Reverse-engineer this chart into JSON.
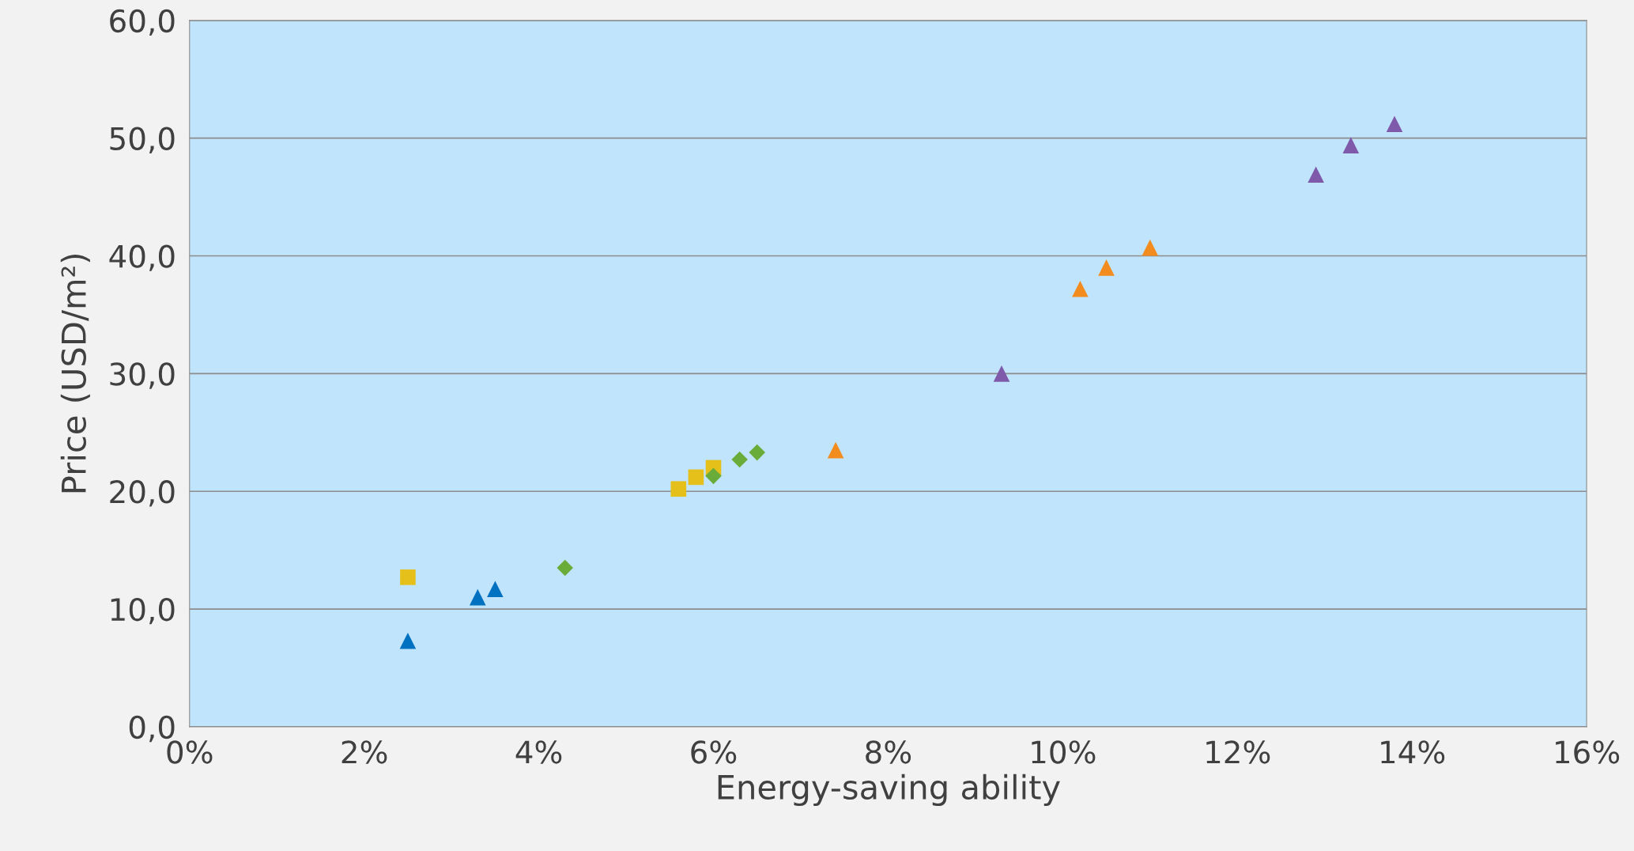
{
  "chart_data": {
    "type": "scatter",
    "xlabel": "Energy-saving ability",
    "ylabel": "Price (USD/m²)",
    "xlim": [
      0,
      16
    ],
    "ylim": [
      0,
      60
    ],
    "xticks": [
      {
        "value": 0,
        "label": "0%"
      },
      {
        "value": 2,
        "label": "2%"
      },
      {
        "value": 4,
        "label": "4%"
      },
      {
        "value": 6,
        "label": "6%"
      },
      {
        "value": 8,
        "label": "8%"
      },
      {
        "value": 10,
        "label": "10%"
      },
      {
        "value": 12,
        "label": "12%"
      },
      {
        "value": 14,
        "label": "14%"
      },
      {
        "value": 16,
        "label": "16%"
      }
    ],
    "yticks": [
      {
        "value": 0,
        "label": "0,0"
      },
      {
        "value": 10,
        "label": "10,0"
      },
      {
        "value": 20,
        "label": "20,0"
      },
      {
        "value": 30,
        "label": "30,0"
      },
      {
        "value": 40,
        "label": "40,0"
      },
      {
        "value": 50,
        "label": "50,0"
      },
      {
        "value": 60,
        "label": "60,0"
      }
    ],
    "grid": "y",
    "series": [
      {
        "color": "#0070c0",
        "marker": "triangle",
        "x": [
          2.5,
          3.3,
          3.5
        ],
        "values": [
          7.3,
          11.0,
          11.7
        ]
      },
      {
        "color": "#e6c01a",
        "marker": "square",
        "x": [
          2.5,
          5.6,
          5.8,
          6.0
        ],
        "values": [
          12.7,
          20.2,
          21.2,
          22.0
        ]
      },
      {
        "color": "#6aac3a",
        "marker": "diamond",
        "x": [
          4.3,
          6.0,
          6.3,
          6.5
        ],
        "values": [
          13.5,
          21.3,
          22.7,
          23.3
        ]
      },
      {
        "color": "#f28c1e",
        "marker": "triangle",
        "x": [
          7.4,
          10.2,
          10.5,
          11.0
        ],
        "values": [
          23.5,
          37.2,
          39.0,
          40.7
        ]
      },
      {
        "color": "#7f5aab",
        "marker": "triangle",
        "x": [
          9.3,
          12.9,
          13.3,
          13.8
        ],
        "values": [
          30.0,
          46.9,
          49.4,
          51.2
        ]
      }
    ]
  }
}
